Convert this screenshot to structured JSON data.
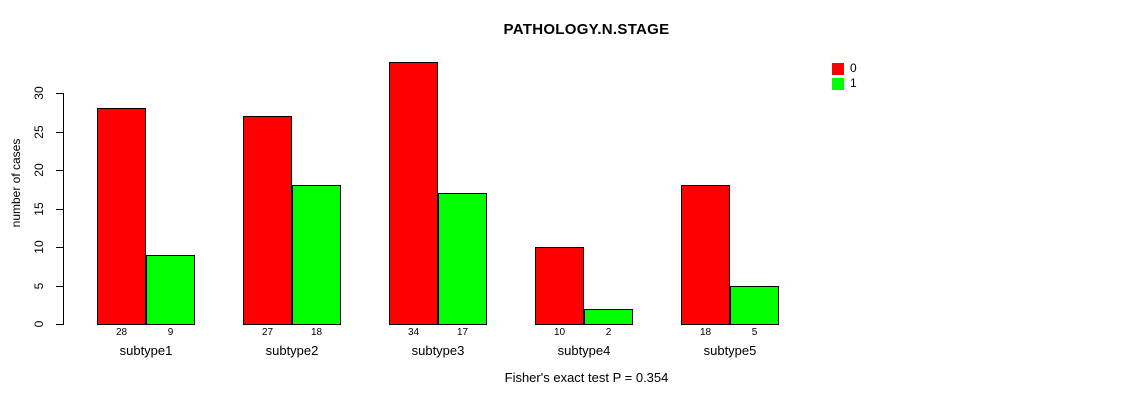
{
  "title": "PATHOLOGY.N.STAGE",
  "footer": "Fisher's exact test P = 0.354",
  "colors": {
    "series0": "#ff0000",
    "series1": "#00ff00",
    "axis": "#000000",
    "background": "#ffffff"
  },
  "legend": {
    "items": [
      {
        "label": "0",
        "color": "#ff0000"
      },
      {
        "label": "1",
        "color": "#00ff00"
      }
    ]
  },
  "chart_data": {
    "type": "bar",
    "title": "PATHOLOGY.N.STAGE",
    "xlabel": "",
    "ylabel": "number of cases",
    "categories": [
      "subtype1",
      "subtype2",
      "subtype3",
      "subtype4",
      "subtype5"
    ],
    "series": [
      {
        "name": "0",
        "color": "#ff0000",
        "values": [
          28,
          27,
          34,
          10,
          18
        ]
      },
      {
        "name": "1",
        "color": "#00ff00",
        "values": [
          9,
          18,
          17,
          2,
          5
        ]
      }
    ],
    "bar_count_labels": {
      "series0": [
        28,
        27,
        34,
        10,
        18
      ],
      "series1": [
        9,
        18,
        17,
        2,
        5
      ]
    },
    "yticks": [
      0,
      5,
      10,
      15,
      20,
      25,
      30
    ],
    "ylim": [
      0,
      34
    ],
    "grid": false,
    "legend_position": "top-right",
    "legend_entries": [
      "0",
      "1"
    ],
    "annotation": "Fisher's exact test P = 0.354"
  }
}
